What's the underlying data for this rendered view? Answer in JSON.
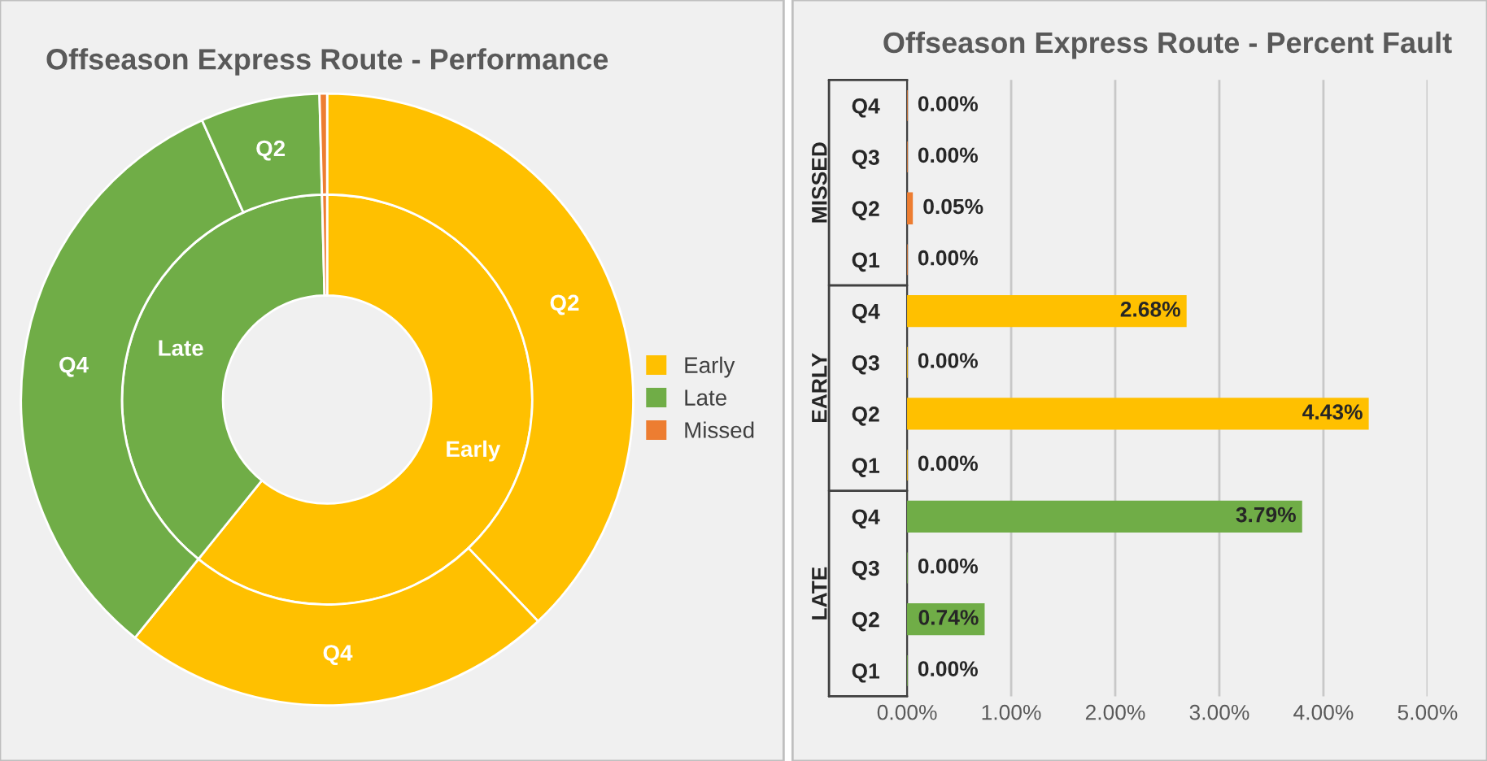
{
  "chart_data": [
    {
      "type": "donut",
      "title": "Offseason Express Route - Performance",
      "legend": "right",
      "categories": [
        "Early",
        null,
        "Late",
        null,
        "Missed"
      ],
      "series": [
        {
          "values": [
            60.8,
            null,
            38.8,
            null,
            0.4
          ],
          "colors": [
            "#ffc000",
            null,
            "#70ad47",
            null,
            "#ed7d31"
          ]
        },
        {
          "values": [
            37.9,
            22.9,
            32.5,
            6.3,
            0.4
          ],
          "value_labels": [
            "Q2",
            "Q4",
            "Q4",
            "Q2",
            null
          ],
          "colors": [
            "#ffc000",
            "#ffc000",
            "#70ad47",
            "#70ad47",
            "#ed7d31"
          ]
        }
      ]
    },
    {
      "type": "bar",
      "orientation": "horizontal",
      "title": "Offseason Express Route - Percent Fault",
      "categories": [
        "Q4",
        "Q3",
        "Q2",
        "Q1",
        "Q4",
        "Q3",
        "Q2",
        "Q1",
        "Q4",
        "Q3",
        "Q2",
        "Q1"
      ],
      "values": [
        0,
        0,
        0.05,
        0,
        2.68,
        0,
        4.43,
        0,
        3.79,
        0,
        0.74,
        0
      ],
      "value_labels": [
        "0.00%",
        "0.00%",
        "0.05%",
        "0.00%",
        "2.68%",
        "0.00%",
        "4.43%",
        "0.00%",
        "3.79%",
        "0.00%",
        "0.74%",
        "0.00%"
      ],
      "colors": [
        "#ed7d31",
        "#ed7d31",
        "#ed7d31",
        "#ed7d31",
        "#ffc000",
        "#ffc000",
        "#ffc000",
        "#ffc000",
        "#70ad47",
        "#70ad47",
        "#70ad47",
        "#70ad47"
      ],
      "annotations": [
        "MISSED",
        "EARLY",
        "LATE"
      ],
      "grid": "x",
      "legend": false,
      "data_labels": true,
      "xlim": [
        0,
        5
      ],
      "xticks": [
        {
          "value": 0,
          "label": "0.00%"
        },
        {
          "value": 1,
          "label": "1.00%"
        },
        {
          "value": 2,
          "label": "2.00%"
        },
        {
          "value": 3,
          "label": "3.00%"
        },
        {
          "value": 4,
          "label": "4.00%"
        },
        {
          "value": 5,
          "label": "5.00%"
        }
      ]
    }
  ]
}
